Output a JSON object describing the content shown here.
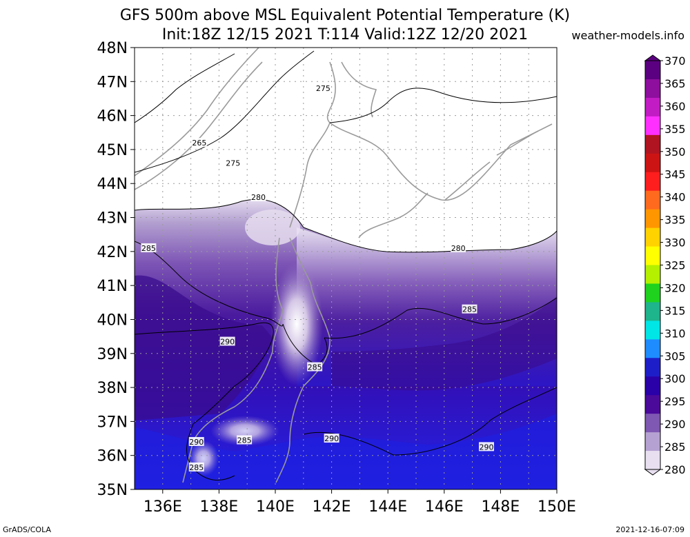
{
  "header": {
    "title_line1": "GFS 500m above MSL Equivalent Potential Temperature (K)",
    "title_line2": "Init:18Z 12/15 2021 T:114 Valid:12Z 12/20 2021",
    "site": "weather-models.info"
  },
  "footer": {
    "left": "GrADS/COLA",
    "right": "2021-12-16-07:09"
  },
  "map": {
    "lat_labels": [
      "48N",
      "47N",
      "46N",
      "45N",
      "44N",
      "43N",
      "42N",
      "41N",
      "40N",
      "39N",
      "38N",
      "37N",
      "36N",
      "35N"
    ],
    "lon_labels": [
      "136E",
      "138E",
      "140E",
      "142E",
      "144E",
      "146E",
      "148E",
      "150E"
    ],
    "lat_range": [
      35,
      48
    ],
    "lon_range": [
      135,
      150
    ],
    "contour_labels": [
      {
        "text": "265",
        "lon": 137.3,
        "lat": 45.2
      },
      {
        "text": "275",
        "lon": 141.7,
        "lat": 46.8
      },
      {
        "text": "275",
        "lon": 138.5,
        "lat": 44.6
      },
      {
        "text": "280",
        "lon": 139.4,
        "lat": 43.6
      },
      {
        "text": "280",
        "lon": 146.5,
        "lat": 42.1
      },
      {
        "text": "285",
        "lon": 135.5,
        "lat": 42.1
      },
      {
        "text": "285",
        "lon": 146.9,
        "lat": 40.3
      },
      {
        "text": "285",
        "lon": 141.4,
        "lat": 38.6
      },
      {
        "text": "285",
        "lon": 138.9,
        "lat": 36.45
      },
      {
        "text": "285",
        "lon": 137.2,
        "lat": 35.65
      },
      {
        "text": "290",
        "lon": 138.3,
        "lat": 39.35
      },
      {
        "text": "290",
        "lon": 142.0,
        "lat": 36.5
      },
      {
        "text": "290",
        "lon": 147.5,
        "lat": 36.25
      },
      {
        "text": "290",
        "lon": 137.2,
        "lat": 36.4
      }
    ]
  },
  "colorbar": {
    "labels": [
      "370",
      "365",
      "360",
      "355",
      "350",
      "345",
      "340",
      "335",
      "330",
      "325",
      "320",
      "315",
      "310",
      "305",
      "300",
      "295",
      "290",
      "285",
      "280"
    ],
    "colors": [
      "#5b0080",
      "#8e0e9e",
      "#c21cc4",
      "#ff30ff",
      "#b01420",
      "#cd1414",
      "#ff1e1e",
      "#ff6a1e",
      "#ff9600",
      "#ffd200",
      "#ffff00",
      "#b4f000",
      "#1ed21e",
      "#1eb48c",
      "#00e6e6",
      "#1e8cff",
      "#1e1ec8",
      "#2a00a8",
      "#4b0a9a",
      "#7e58b2",
      "#b6a2d2",
      "#e8e0f0"
    ]
  }
}
